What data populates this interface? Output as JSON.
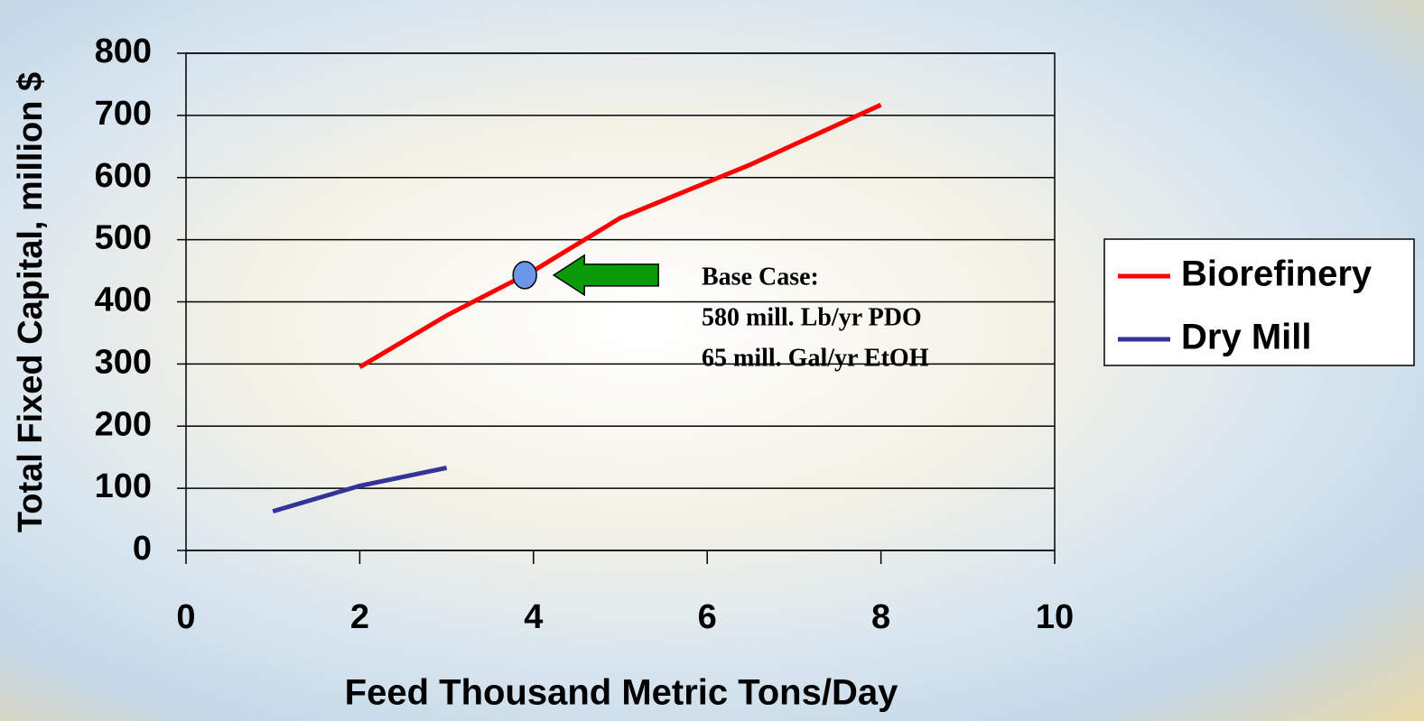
{
  "chart_data": {
    "type": "line",
    "xlabel": "Feed Thousand Metric Tons/Day",
    "ylabel": "Total Fixed Capital, million $",
    "series": [
      {
        "name": "Biorefinery",
        "color": "#ff0000",
        "x": [
          2,
          3,
          4,
          5,
          6.5,
          8
        ],
        "values": [
          295,
          378,
          450,
          535,
          621,
          717
        ]
      },
      {
        "name": "Dry Mill",
        "color": "#333399",
        "x": [
          1,
          2,
          3
        ],
        "values": [
          63,
          104,
          133
        ]
      }
    ],
    "xlim": [
      0,
      10
    ],
    "ylim": [
      0,
      800
    ],
    "xticks": [
      0,
      2,
      4,
      6,
      8,
      10
    ],
    "yticks": [
      0,
      100,
      200,
      300,
      400,
      500,
      600,
      700,
      800
    ],
    "grid": true,
    "legend": "right",
    "annotation": {
      "lines": [
        "Base Case:",
        "580 mill. Lb/yr PDO",
        "65 mill. Gal/yr EtOH"
      ],
      "x": 3.9,
      "y": 443,
      "color": "#6e96e8"
    }
  }
}
